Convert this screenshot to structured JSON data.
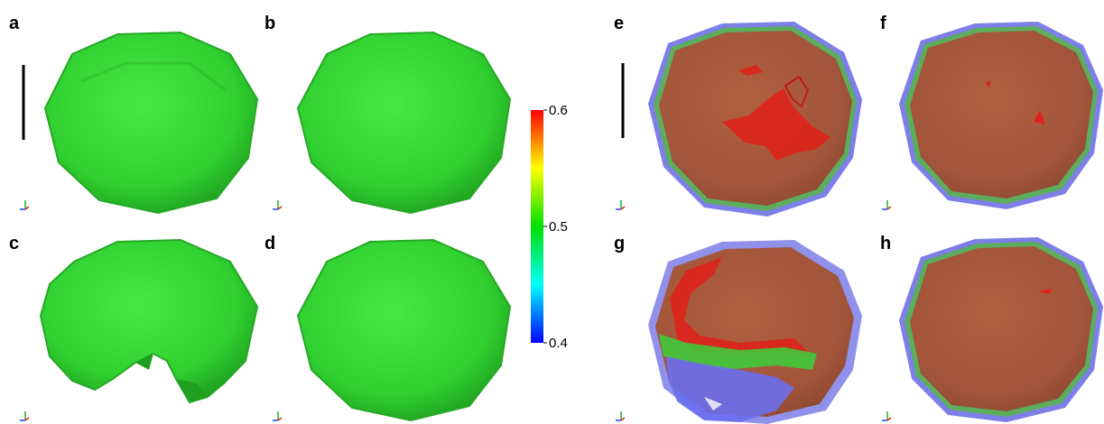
{
  "panels": [
    {
      "label": "a"
    },
    {
      "label": "b"
    },
    {
      "label": "c"
    },
    {
      "label": "d"
    },
    {
      "label": "e"
    },
    {
      "label": "f"
    },
    {
      "label": "g"
    },
    {
      "label": "h"
    }
  ],
  "colorbar": {
    "min_label": "0.4",
    "mid_label": "0.5",
    "max_label": "0.6",
    "colors": [
      "#0000ff",
      "#00ffff",
      "#00e000",
      "#ffff00",
      "#ff0000"
    ]
  },
  "colors": {
    "surface_green": "#2fd42f",
    "surface_brown": "#a5553a",
    "shell_blue": "#7d7ee8",
    "shell_green": "#5cae5c",
    "inclusion_red": "#e0201a"
  }
}
